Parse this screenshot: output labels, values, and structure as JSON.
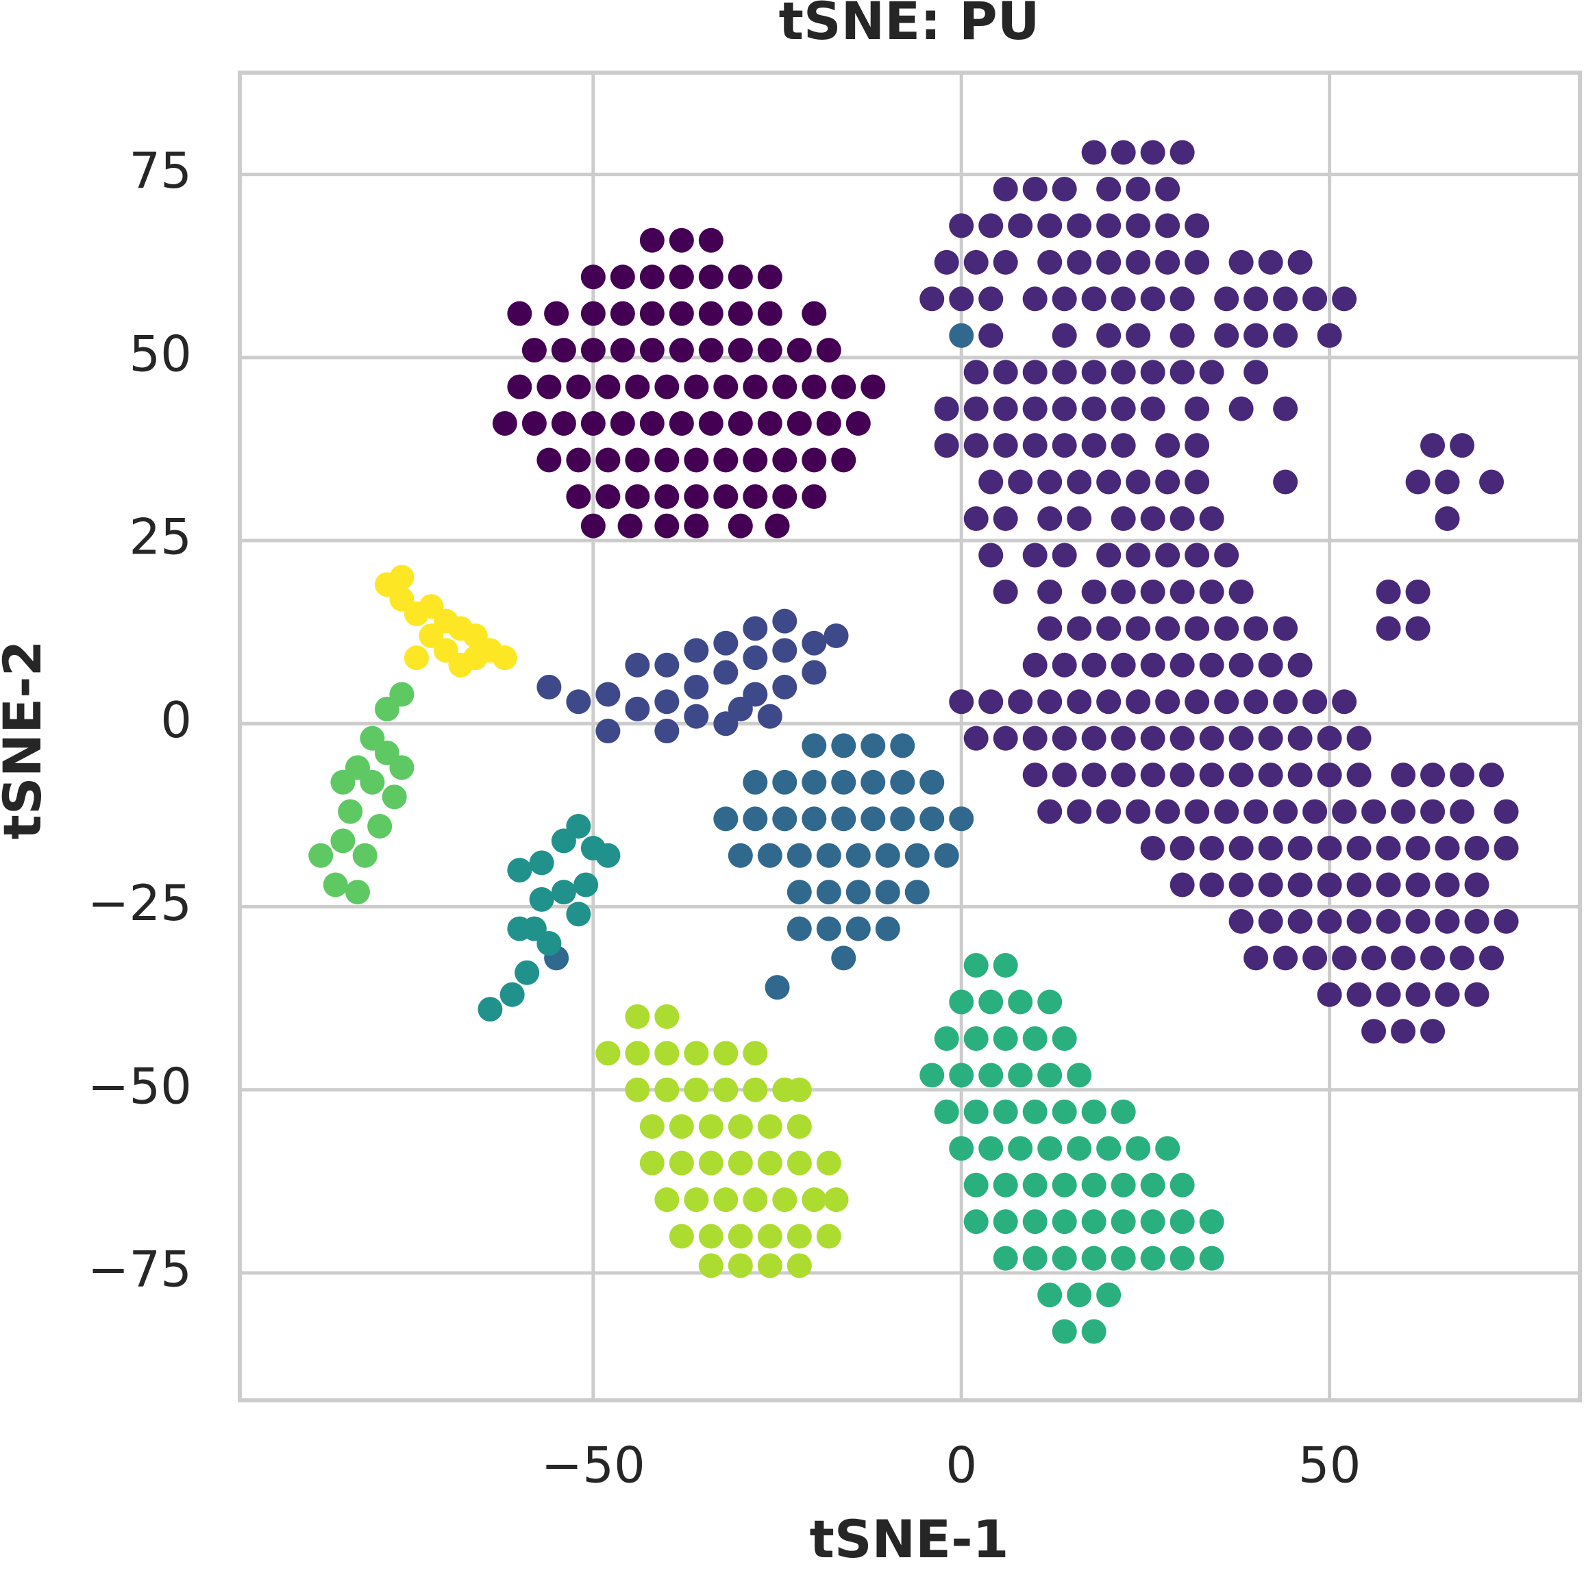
{
  "chart_data": {
    "type": "scatter",
    "title": "tSNE: PU",
    "xlabel": "tSNE-1",
    "ylabel": "tSNE-2",
    "xlim": [
      -98,
      84
    ],
    "ylim": [
      -92.4,
      88.9
    ],
    "xticks": [
      {
        "value": -50,
        "label": "−50"
      },
      0,
      50
    ],
    "yticks": [
      {
        "value": -75,
        "label": "−75"
      },
      {
        "value": -50,
        "label": "−50"
      },
      {
        "value": -25,
        "label": "−25"
      },
      0,
      25,
      50,
      75
    ],
    "grid": true,
    "series": [
      {
        "color": "#440154",
        "x": [
          -42,
          -38,
          -34,
          -50,
          -46,
          -42,
          -38,
          -34,
          -30,
          -26,
          -60,
          -55,
          -50,
          -46,
          -42,
          -38,
          -34,
          -30,
          -26,
          -20,
          -58,
          -54,
          -50,
          -46,
          -42,
          -38,
          -34,
          -30,
          -26,
          -22,
          -18,
          -60,
          -56,
          -52,
          -48,
          -44,
          -40,
          -36,
          -32,
          -28,
          -24,
          -20,
          -16,
          -12,
          -62,
          -58,
          -54,
          -50,
          -46,
          -42,
          -38,
          -34,
          -30,
          -26,
          -22,
          -18,
          -14,
          -56,
          -52,
          -48,
          -44,
          -40,
          -36,
          -32,
          -28,
          -24,
          -20,
          -16,
          -52,
          -48,
          -44,
          -40,
          -36,
          -32,
          -28,
          -24,
          -20,
          -50,
          -45,
          -40,
          -36,
          -30,
          -25
        ],
        "y": [
          66,
          66,
          66,
          61,
          61,
          61,
          61,
          61,
          61,
          61,
          56,
          56,
          56,
          56,
          56,
          56,
          56,
          56,
          56,
          56,
          51,
          51,
          51,
          51,
          51,
          51,
          51,
          51,
          51,
          51,
          51,
          46,
          46,
          46,
          46,
          46,
          46,
          46,
          46,
          46,
          46,
          46,
          46,
          46,
          41,
          41,
          41,
          41,
          41,
          41,
          41,
          41,
          41,
          41,
          41,
          41,
          41,
          36,
          36,
          36,
          36,
          36,
          36,
          36,
          36,
          36,
          36,
          36,
          31,
          31,
          31,
          31,
          31,
          31,
          31,
          31,
          31,
          27,
          27,
          27,
          27,
          27,
          27
        ]
      },
      {
        "color": "#482878",
        "x": [
          18,
          22,
          26,
          30,
          6,
          10,
          14,
          20,
          24,
          28,
          0,
          4,
          8,
          12,
          16,
          20,
          24,
          28,
          32,
          -2,
          2,
          6,
          12,
          16,
          20,
          24,
          28,
          32,
          38,
          42,
          46,
          -4,
          0,
          4,
          10,
          14,
          18,
          22,
          26,
          30,
          36,
          40,
          44,
          48,
          52,
          4,
          14,
          20,
          24,
          30,
          36,
          40,
          44,
          50,
          2,
          6,
          10,
          14,
          18,
          22,
          26,
          30,
          34,
          40,
          -2,
          2,
          6,
          10,
          14,
          18,
          22,
          26,
          32,
          38,
          44,
          -2,
          2,
          6,
          10,
          14,
          18,
          22,
          28,
          32,
          64,
          68,
          4,
          8,
          12,
          16,
          20,
          24,
          28,
          32,
          44,
          62,
          66,
          72,
          2,
          6,
          12,
          16,
          22,
          26,
          30,
          34,
          66,
          4,
          10,
          14,
          20,
          24,
          28,
          32,
          36,
          6,
          12,
          18,
          22,
          26,
          30,
          34,
          38,
          58,
          62,
          12,
          16,
          20,
          24,
          28,
          32,
          36,
          40,
          44,
          58,
          62,
          10,
          14,
          18,
          22,
          26,
          30,
          34,
          38,
          42,
          46,
          0,
          4,
          8,
          12,
          16,
          20,
          24,
          28,
          32,
          36,
          40,
          44,
          48,
          52,
          2,
          6,
          10,
          14,
          18,
          22,
          26,
          30,
          34,
          38,
          42,
          46,
          50,
          54,
          10,
          14,
          18,
          22,
          26,
          30,
          34,
          38,
          42,
          46,
          50,
          54,
          60,
          64,
          68,
          72,
          12,
          16,
          20,
          24,
          28,
          32,
          36,
          40,
          44,
          48,
          52,
          56,
          60,
          64,
          68,
          74,
          26,
          30,
          34,
          38,
          42,
          46,
          50,
          54,
          58,
          62,
          66,
          70,
          74,
          30,
          34,
          38,
          42,
          46,
          50,
          54,
          58,
          62,
          66,
          70,
          38,
          42,
          46,
          50,
          54,
          58,
          62,
          66,
          70,
          74,
          40,
          44,
          48,
          52,
          56,
          60,
          64,
          68,
          72,
          50,
          54,
          58,
          62,
          66,
          70,
          56,
          60,
          64
        ],
        "y": [
          78,
          78,
          78,
          78,
          73,
          73,
          73,
          73,
          73,
          73,
          68,
          68,
          68,
          68,
          68,
          68,
          68,
          68,
          68,
          63,
          63,
          63,
          63,
          63,
          63,
          63,
          63,
          63,
          63,
          63,
          63,
          58,
          58,
          58,
          58,
          58,
          58,
          58,
          58,
          58,
          58,
          58,
          58,
          58,
          58,
          53,
          53,
          53,
          53,
          53,
          53,
          53,
          53,
          53,
          48,
          48,
          48,
          48,
          48,
          48,
          48,
          48,
          48,
          48,
          43,
          43,
          43,
          43,
          43,
          43,
          43,
          43,
          43,
          43,
          43,
          38,
          38,
          38,
          38,
          38,
          38,
          38,
          38,
          38,
          38,
          38,
          33,
          33,
          33,
          33,
          33,
          33,
          33,
          33,
          33,
          33,
          33,
          33,
          28,
          28,
          28,
          28,
          28,
          28,
          28,
          28,
          28,
          23,
          23,
          23,
          23,
          23,
          23,
          23,
          23,
          18,
          18,
          18,
          18,
          18,
          18,
          18,
          18,
          18,
          18,
          13,
          13,
          13,
          13,
          13,
          13,
          13,
          13,
          13,
          13,
          13,
          8,
          8,
          8,
          8,
          8,
          8,
          8,
          8,
          8,
          8,
          3,
          3,
          3,
          3,
          3,
          3,
          3,
          3,
          3,
          3,
          3,
          3,
          3,
          3,
          -2,
          -2,
          -2,
          -2,
          -2,
          -2,
          -2,
          -2,
          -2,
          -2,
          -2,
          -2,
          -2,
          -2,
          -7,
          -7,
          -7,
          -7,
          -7,
          -7,
          -7,
          -7,
          -7,
          -7,
          -7,
          -7,
          -7,
          -7,
          -7,
          -7,
          -12,
          -12,
          -12,
          -12,
          -12,
          -12,
          -12,
          -12,
          -12,
          -12,
          -12,
          -12,
          -12,
          -12,
          -12,
          -12,
          -17,
          -17,
          -17,
          -17,
          -17,
          -17,
          -17,
          -17,
          -17,
          -17,
          -17,
          -17,
          -17,
          -22,
          -22,
          -22,
          -22,
          -22,
          -22,
          -22,
          -22,
          -22,
          -22,
          -22,
          -27,
          -27,
          -27,
          -27,
          -27,
          -27,
          -27,
          -27,
          -27,
          -27,
          -32,
          -32,
          -32,
          -32,
          -32,
          -32,
          -32,
          -32,
          -32,
          -37,
          -37,
          -37,
          -37,
          -37,
          -37,
          -42,
          -42,
          -42
        ]
      },
      {
        "color": "#3e4989",
        "x": [
          -56,
          -52,
          -48,
          -44,
          -40,
          -44,
          -40,
          -36,
          -36,
          -32,
          -32,
          -28,
          -28,
          -24,
          -24,
          -20,
          -20,
          -17,
          -28,
          -24,
          -36,
          -30,
          -48,
          -40,
          -32,
          -26
        ],
        "y": [
          5,
          3,
          4,
          2,
          3,
          8,
          8,
          5,
          10,
          7,
          11,
          9,
          13,
          10,
          14,
          11,
          7,
          12,
          4,
          5,
          1,
          2,
          -1,
          -1,
          0,
          1
        ]
      },
      {
        "color": "#31688e",
        "x": [
          -20,
          -16,
          -12,
          -8,
          -28,
          -24,
          -20,
          -16,
          -12,
          -8,
          -4,
          -32,
          -28,
          -24,
          -20,
          -16,
          -12,
          -8,
          -4,
          0,
          -30,
          -26,
          -22,
          -18,
          -14,
          -10,
          -6,
          -2,
          -22,
          -18,
          -14,
          -10,
          -6,
          -22,
          -18,
          -14,
          -10,
          -16,
          -25,
          -55,
          0
        ],
        "y": [
          -3,
          -3,
          -3,
          -3,
          -8,
          -8,
          -8,
          -8,
          -8,
          -8,
          -8,
          -13,
          -13,
          -13,
          -13,
          -13,
          -13,
          -13,
          -13,
          -13,
          -18,
          -18,
          -18,
          -18,
          -18,
          -18,
          -18,
          -18,
          -23,
          -23,
          -23,
          -23,
          -23,
          -28,
          -28,
          -28,
          -28,
          -32,
          -36,
          -32,
          53
        ]
      },
      {
        "color": "#21918c",
        "x": [
          -60,
          -57,
          -57,
          -54,
          -54,
          -58,
          -52,
          -50,
          -48,
          -51,
          -56,
          -59,
          -61,
          -64,
          -52,
          -60
        ],
        "y": [
          -20,
          -19,
          -24,
          -23,
          -16,
          -28,
          -14,
          -17,
          -18,
          -22,
          -30,
          -34,
          -37,
          -39,
          -26,
          -28
        ]
      },
      {
        "color": "#2ab07f",
        "x": [
          2,
          6,
          0,
          4,
          8,
          12,
          -2,
          2,
          6,
          10,
          14,
          -4,
          0,
          4,
          8,
          12,
          16,
          -2,
          2,
          6,
          10,
          14,
          18,
          22,
          0,
          4,
          8,
          12,
          16,
          20,
          24,
          28,
          2,
          6,
          10,
          14,
          18,
          22,
          26,
          30,
          2,
          6,
          10,
          14,
          18,
          22,
          26,
          30,
          34,
          6,
          10,
          14,
          18,
          22,
          26,
          30,
          34,
          12,
          16,
          20,
          14,
          18
        ],
        "y": [
          -33,
          -33,
          -38,
          -38,
          -38,
          -38,
          -43,
          -43,
          -43,
          -43,
          -43,
          -48,
          -48,
          -48,
          -48,
          -48,
          -48,
          -53,
          -53,
          -53,
          -53,
          -53,
          -53,
          -53,
          -58,
          -58,
          -58,
          -58,
          -58,
          -58,
          -58,
          -58,
          -63,
          -63,
          -63,
          -63,
          -63,
          -63,
          -63,
          -63,
          -68,
          -68,
          -68,
          -68,
          -68,
          -68,
          -68,
          -68,
          -68,
          -73,
          -73,
          -73,
          -73,
          -73,
          -73,
          -73,
          -73,
          -78,
          -78,
          -78,
          -83,
          -83
        ]
      },
      {
        "color": "#5ec962",
        "x": [
          -87,
          -85,
          -84,
          -82,
          -83,
          -81,
          -80,
          -79,
          -78,
          -77,
          -76,
          -80,
          -78,
          -76,
          -82,
          -84
        ],
        "y": [
          -18,
          -22,
          -16,
          -23,
          -12,
          -18,
          -8,
          -14,
          -4,
          -10,
          -6,
          -2,
          2,
          4,
          -6,
          -8
        ]
      },
      {
        "color": "#addc30",
        "x": [
          -44,
          -40,
          -48,
          -44,
          -40,
          -36,
          -32,
          -28,
          -44,
          -40,
          -36,
          -32,
          -28,
          -24,
          -22,
          -42,
          -38,
          -34,
          -30,
          -26,
          -22,
          -42,
          -38,
          -34,
          -30,
          -26,
          -22,
          -18,
          -40,
          -36,
          -32,
          -28,
          -24,
          -20,
          -17,
          -38,
          -34,
          -30,
          -26,
          -22,
          -18,
          -34,
          -30,
          -26,
          -22
        ],
        "y": [
          -40,
          -40,
          -45,
          -45,
          -45,
          -45,
          -45,
          -45,
          -50,
          -50,
          -50,
          -50,
          -50,
          -50,
          -50,
          -55,
          -55,
          -55,
          -55,
          -55,
          -55,
          -60,
          -60,
          -60,
          -60,
          -60,
          -60,
          -60,
          -65,
          -65,
          -65,
          -65,
          -65,
          -65,
          -65,
          -70,
          -70,
          -70,
          -70,
          -70,
          -70,
          -74,
          -74,
          -74,
          -74
        ]
      },
      {
        "color": "#fde725",
        "x": [
          -78,
          -76,
          -74,
          -72,
          -70,
          -68,
          -66,
          -72,
          -70,
          -66,
          -74,
          -64,
          -62,
          -68,
          -76
        ],
        "y": [
          19,
          17,
          15,
          16,
          14,
          13,
          12,
          12,
          10,
          9,
          9,
          10,
          9,
          8,
          20
        ]
      }
    ]
  }
}
